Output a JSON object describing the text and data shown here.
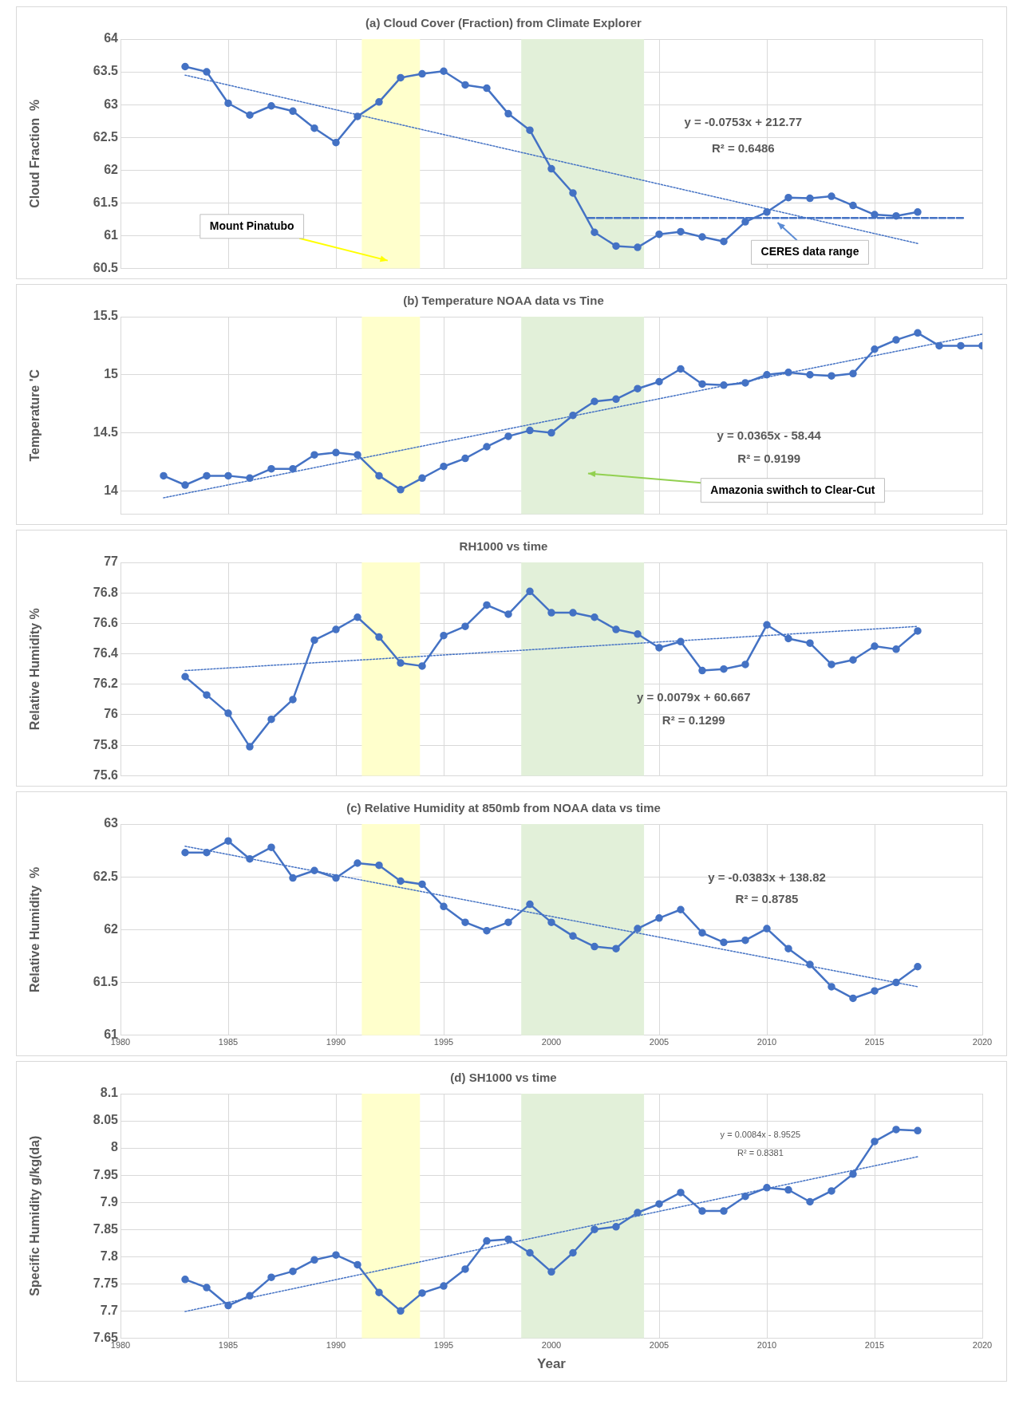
{
  "chart_data": [
    {
      "type": "line",
      "title": "(a) Cloud Cover (Fraction) from Climate Explorer",
      "ylabel": "Cloud Fraction  %",
      "x": [
        1983,
        1984,
        1985,
        1986,
        1987,
        1988,
        1989,
        1990,
        1991,
        1992,
        1993,
        1994,
        1995,
        1996,
        1997,
        1998,
        1999,
        2000,
        2001,
        2002,
        2003,
        2004,
        2005,
        2006,
        2007,
        2008,
        2009,
        2010,
        2011,
        2012,
        2013,
        2014,
        2015,
        2016,
        2017
      ],
      "xlim": [
        1980,
        2020
      ],
      "xticks": [
        1980,
        1985,
        1990,
        1995,
        2000,
        2005,
        2010,
        2015,
        2020
      ],
      "ylim": [
        60.5,
        64
      ],
      "yticks": [
        60.5,
        61,
        61.5,
        62,
        62.5,
        63,
        63.5,
        64
      ],
      "grid": true,
      "tick_labels": "y",
      "marker": "circle",
      "line_style": "solid",
      "series": [
        {
          "color": "#4472c4",
          "values": [
            63.58,
            63.5,
            63.02,
            62.84,
            62.98,
            62.9,
            62.64,
            62.42,
            62.82,
            63.04,
            63.41,
            63.47,
            63.51,
            63.3,
            63.25,
            62.86,
            62.61,
            62.02,
            61.65,
            61.05,
            60.84,
            60.82,
            61.02,
            61.06,
            60.98,
            60.91,
            61.21,
            61.36,
            61.58,
            61.57,
            61.6,
            61.46,
            61.32,
            61.3,
            61.36
          ]
        },
        {
          "type": "line",
          "color": "#4472c4",
          "x": [
            1983,
            2017
          ],
          "values": [
            63.45,
            60.88
          ],
          "marker": "none",
          "line_style": "dotted"
        },
        {
          "type": "line",
          "color": "#4472c4",
          "x": [
            2001.7,
            2019.2
          ],
          "values": [
            61.27,
            61.27
          ],
          "marker": "none",
          "line_style": "dashed"
        }
      ],
      "bands": [
        {
          "axis": "x",
          "from": 1991.2,
          "to": 1993.9,
          "color": "#ffffcc"
        },
        {
          "axis": "x",
          "from": 1998.6,
          "to": 2004.3,
          "color": "#e2f0d9"
        }
      ],
      "annotations": [
        "y = -0.0753x + 212.77",
        "R² = 0.6486",
        "Mount Pinatubo",
        "CERES data range"
      ]
    },
    {
      "type": "line",
      "title": "(b) Temperature NOAA data vs Tine",
      "ylabel": "Temperature 'C",
      "x": [
        1982,
        1983,
        1984,
        1985,
        1986,
        1987,
        1988,
        1989,
        1990,
        1991,
        1992,
        1993,
        1994,
        1995,
        1996,
        1997,
        1998,
        1999,
        2000,
        2001,
        2002,
        2003,
        2004,
        2005,
        2006,
        2007,
        2008,
        2009,
        2010,
        2011,
        2012,
        2013,
        2014,
        2015,
        2016,
        2017,
        2018,
        2019,
        2020
      ],
      "xlim": [
        1980,
        2020
      ],
      "xticks": [
        1980,
        1985,
        1990,
        1995,
        2000,
        2005,
        2010,
        2015,
        2020
      ],
      "ylim": [
        13.8,
        15.5
      ],
      "yticks": [
        14,
        14.5,
        15,
        15.5
      ],
      "grid": true,
      "tick_labels": "y",
      "marker": "circle",
      "line_style": "solid",
      "series": [
        {
          "color": "#4472c4",
          "values": [
            14.13,
            14.05,
            14.13,
            14.13,
            14.11,
            14.19,
            14.19,
            14.31,
            14.33,
            14.31,
            14.13,
            14.01,
            14.11,
            14.21,
            14.28,
            14.38,
            14.47,
            14.52,
            14.5,
            14.65,
            14.77,
            14.79,
            14.88,
            14.94,
            15.05,
            14.92,
            14.91,
            14.93,
            15.0,
            15.02,
            15.0,
            14.99,
            15.01,
            15.22,
            15.3,
            15.36,
            15.25,
            15.25,
            15.25
          ]
        },
        {
          "type": "line",
          "color": "#4472c4",
          "x": [
            1982,
            2020
          ],
          "values": [
            13.94,
            15.35
          ],
          "marker": "none",
          "line_style": "dotted"
        }
      ],
      "bands": [
        {
          "axis": "x",
          "from": 1991.2,
          "to": 1993.9,
          "color": "#ffffcc"
        },
        {
          "axis": "x",
          "from": 1998.6,
          "to": 2004.3,
          "color": "#e2f0d9"
        }
      ],
      "annotations": [
        "y = 0.0365x - 58.44",
        "R² = 0.9199",
        "Amazonia swithch to Clear-Cut"
      ]
    },
    {
      "type": "line",
      "title": "RH1000 vs time",
      "ylabel": "Relative Humidity %",
      "x": [
        1983,
        1984,
        1985,
        1986,
        1987,
        1988,
        1989,
        1990,
        1991,
        1992,
        1993,
        1994,
        1995,
        1996,
        1997,
        1998,
        1999,
        2000,
        2001,
        2002,
        2003,
        2004,
        2005,
        2006,
        2007,
        2008,
        2009,
        2010,
        2011,
        2012,
        2013,
        2014,
        2015,
        2016,
        2017
      ],
      "xlim": [
        1980,
        2020
      ],
      "xticks": [
        1980,
        1985,
        1990,
        1995,
        2000,
        2005,
        2010,
        2015,
        2020
      ],
      "ylim": [
        75.6,
        77
      ],
      "yticks": [
        75.6,
        75.8,
        76,
        76.2,
        76.4,
        76.6,
        76.8,
        77
      ],
      "grid": true,
      "tick_labels": "y",
      "marker": "circle",
      "line_style": "solid",
      "series": [
        {
          "color": "#4472c4",
          "values": [
            76.25,
            76.13,
            76.01,
            75.79,
            75.97,
            76.1,
            76.49,
            76.56,
            76.64,
            76.51,
            76.34,
            76.32,
            76.52,
            76.58,
            76.72,
            76.66,
            76.81,
            76.67,
            76.67,
            76.64,
            76.56,
            76.53,
            76.44,
            76.48,
            76.29,
            76.3,
            76.33,
            76.59,
            76.5,
            76.47,
            76.33,
            76.36,
            76.45,
            76.43,
            76.55
          ]
        },
        {
          "type": "line",
          "color": "#4472c4",
          "x": [
            1983,
            2017
          ],
          "values": [
            76.29,
            76.58
          ],
          "marker": "none",
          "line_style": "dotted"
        }
      ],
      "bands": [
        {
          "axis": "x",
          "from": 1991.2,
          "to": 1993.9,
          "color": "#ffffcc"
        },
        {
          "axis": "x",
          "from": 1998.6,
          "to": 2004.3,
          "color": "#e2f0d9"
        }
      ],
      "annotations": [
        "y = 0.0079x + 60.667",
        "R² = 0.1299"
      ]
    },
    {
      "type": "line",
      "title": "(c) Relative Humidity at 850mb from NOAA data vs time",
      "ylabel": "Relative Humidity  %",
      "x": [
        1983,
        1984,
        1985,
        1986,
        1987,
        1988,
        1989,
        1990,
        1991,
        1992,
        1993,
        1994,
        1995,
        1996,
        1997,
        1998,
        1999,
        2000,
        2001,
        2002,
        2003,
        2004,
        2005,
        2006,
        2007,
        2008,
        2009,
        2010,
        2011,
        2012,
        2013,
        2014,
        2015,
        2016,
        2017
      ],
      "xlim": [
        1980,
        2020
      ],
      "xticks": [
        1980,
        1985,
        1990,
        1995,
        2000,
        2005,
        2010,
        2015,
        2020
      ],
      "ylim": [
        61,
        63
      ],
      "yticks": [
        61,
        61.5,
        62,
        62.5,
        63
      ],
      "grid": true,
      "marker": "circle",
      "line_style": "solid",
      "series": [
        {
          "color": "#4472c4",
          "values": [
            62.73,
            62.73,
            62.84,
            62.67,
            62.78,
            62.49,
            62.56,
            62.49,
            62.63,
            62.61,
            62.46,
            62.43,
            62.22,
            62.07,
            61.99,
            62.07,
            62.24,
            62.07,
            61.94,
            61.84,
            61.82,
            62.01,
            62.11,
            62.19,
            61.97,
            61.88,
            61.9,
            62.01,
            61.82,
            61.67,
            61.46,
            61.35,
            61.42,
            61.5,
            61.65
          ]
        },
        {
          "type": "line",
          "color": "#4472c4",
          "x": [
            1983,
            2017
          ],
          "values": [
            62.79,
            61.46
          ],
          "marker": "none",
          "line_style": "dotted"
        }
      ],
      "bands": [
        {
          "axis": "x",
          "from": 1991.2,
          "to": 1993.9,
          "color": "#ffffcc"
        },
        {
          "axis": "x",
          "from": 1998.6,
          "to": 2004.3,
          "color": "#e2f0d9"
        }
      ],
      "annotations": [
        "y = -0.0383x + 138.82",
        "R² = 0.8785"
      ]
    },
    {
      "type": "line",
      "title": "(d) SH1000 vs time",
      "xlabel": "Year",
      "ylabel": "Specific Humidity g/kg(da)",
      "x": [
        1983,
        1984,
        1985,
        1986,
        1987,
        1988,
        1989,
        1990,
        1991,
        1992,
        1993,
        1994,
        1995,
        1996,
        1997,
        1998,
        1999,
        2000,
        2001,
        2002,
        2003,
        2004,
        2005,
        2006,
        2007,
        2008,
        2009,
        2010,
        2011,
        2012,
        2013,
        2014,
        2015,
        2016,
        2017
      ],
      "xlim": [
        1980,
        2020
      ],
      "xticks": [
        1980,
        1985,
        1990,
        1995,
        2000,
        2005,
        2010,
        2015,
        2020
      ],
      "ylim": [
        7.65,
        8.1
      ],
      "yticks": [
        7.65,
        7.7,
        7.75,
        7.8,
        7.85,
        7.9,
        7.95,
        8,
        8.05,
        8.1
      ],
      "grid": true,
      "marker": "circle",
      "line_style": "solid",
      "series": [
        {
          "color": "#4472c4",
          "values": [
            7.758,
            7.743,
            7.71,
            7.728,
            7.762,
            7.773,
            7.794,
            7.803,
            7.785,
            7.734,
            7.7,
            7.733,
            7.746,
            7.777,
            7.829,
            7.832,
            7.807,
            7.772,
            7.807,
            7.85,
            7.855,
            7.881,
            7.897,
            7.918,
            7.884,
            7.884,
            7.911,
            7.927,
            7.923,
            7.901,
            7.921,
            7.952,
            8.012,
            8.034,
            8.032
          ]
        },
        {
          "type": "line",
          "color": "#4472c4",
          "x": [
            1983,
            2017
          ],
          "values": [
            7.699,
            7.984
          ],
          "marker": "none",
          "line_style": "dotted"
        }
      ],
      "bands": [
        {
          "axis": "x",
          "from": 1991.2,
          "to": 1993.9,
          "color": "#ffffcc"
        },
        {
          "axis": "x",
          "from": 1998.6,
          "to": 2004.3,
          "color": "#e2f0d9"
        }
      ],
      "annotations": [
        "y = 0.0084x - 8.9525",
        "R² = 0.8381"
      ]
    }
  ]
}
